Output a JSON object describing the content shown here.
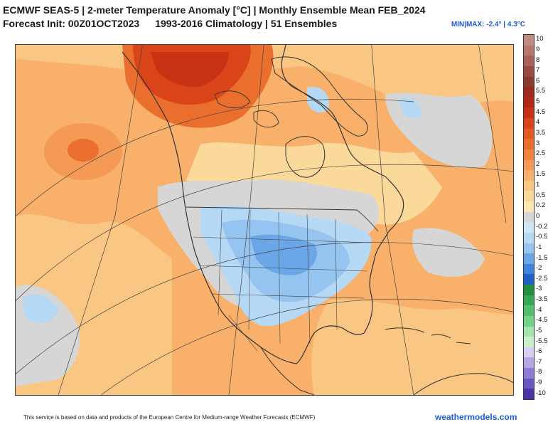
{
  "header": {
    "title_line_1": "ECMWF SEAS-5 | 2-meter Temperature Anomaly [°C] | Monthly Ensemble Mean FEB_2024",
    "forecast_init": "Forecast Init: 00Z01OCT2023",
    "climatology": "1993-2016 Climatology | 51 Ensembles",
    "minmax": "MIN|MAX: -2.4° | 4.3°C"
  },
  "colorbar": {
    "levels": [
      {
        "label": "10",
        "color": "#c08a80"
      },
      {
        "label": "9",
        "color": "#b87570"
      },
      {
        "label": "8",
        "color": "#a86058"
      },
      {
        "label": "7",
        "color": "#9a4a44"
      },
      {
        "label": "6",
        "color": "#8b3a30"
      },
      {
        "label": "5.5",
        "color": "#9e2a1c"
      },
      {
        "label": "5",
        "color": "#b42818"
      },
      {
        "label": "4.5",
        "color": "#c83214"
      },
      {
        "label": "4",
        "color": "#d94418"
      },
      {
        "label": "3.5",
        "color": "#e25a22"
      },
      {
        "label": "3",
        "color": "#ea6e2e"
      },
      {
        "label": "2.5",
        "color": "#f0843e"
      },
      {
        "label": "2",
        "color": "#f49a54"
      },
      {
        "label": "1.5",
        "color": "#f8b06a"
      },
      {
        "label": "1",
        "color": "#fac684"
      },
      {
        "label": "0.5",
        "color": "#fbd99a"
      },
      {
        "label": "0.2",
        "color": "#fde8b4"
      },
      {
        "label": "0",
        "color": "#d6d6d6"
      },
      {
        "label": "-0.2",
        "color": "#cfe6f7"
      },
      {
        "label": "-0.5",
        "color": "#b5d8f5"
      },
      {
        "label": "-1",
        "color": "#96c4f0"
      },
      {
        "label": "-1.5",
        "color": "#6aa6e8"
      },
      {
        "label": "-2",
        "color": "#3e84dc"
      },
      {
        "label": "-2.5",
        "color": "#2060c8"
      },
      {
        "label": "-3",
        "color": "#1f8f3a"
      },
      {
        "label": "-3.5",
        "color": "#34a852"
      },
      {
        "label": "-4",
        "color": "#50c06a"
      },
      {
        "label": "-4.5",
        "color": "#74d486"
      },
      {
        "label": "-5",
        "color": "#a2e6aa"
      },
      {
        "label": "-5.5",
        "color": "#cdeeca"
      },
      {
        "label": "-6",
        "color": "#d8d0f0"
      },
      {
        "label": "-7",
        "color": "#b4a6e4"
      },
      {
        "label": "-8",
        "color": "#8d7cd4"
      },
      {
        "label": "-9",
        "color": "#6a56c2"
      },
      {
        "label": "-10",
        "color": "#4a34a8"
      }
    ]
  },
  "map": {
    "region": "North America",
    "colors": {
      "ocean_base": "#f8b06a",
      "warm_max": "#d94418",
      "neutral": "#d6d6d6",
      "cold": "#96c4f0",
      "boundaries": "#333333"
    }
  },
  "footer": {
    "credit": "This service is based on data and products of the European Centre for Medium-range Weather Forecasts (ECMWF)",
    "site": "weathermodels.com"
  }
}
